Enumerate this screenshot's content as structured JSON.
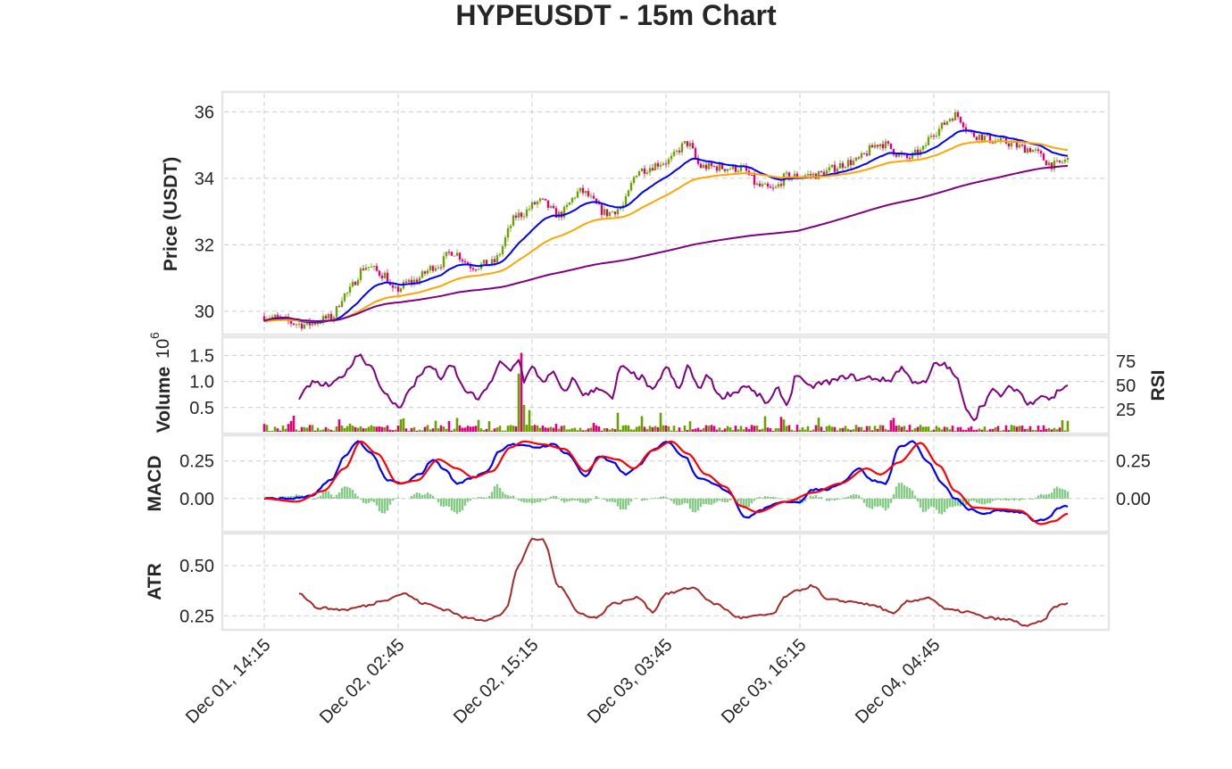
{
  "chart_data": {
    "type": "candlestick",
    "title": "HYPEUSDT - 15m Chart",
    "x_tick_labels": [
      "Dec 01, 14:15",
      "Dec 02, 02:45",
      "Dec 02, 15:15",
      "Dec 03, 03:45",
      "Dec 03, 16:15",
      "Dec 04, 04:45"
    ],
    "bars_between_ticks": 50,
    "bar_count": 301,
    "colors": {
      "up": "#6aa000",
      "down": "#e0007a",
      "ma_fast": "#0000ff",
      "ma_mid": "#ffa500",
      "ma_slow": "#800080",
      "rsi": "#800080",
      "macd": "#0000ff",
      "signal": "#ff0000",
      "hist": "#5cb85c",
      "atr": "#a52a2a"
    },
    "panels": {
      "price": {
        "ylabel": "Price (USDT)",
        "ylim": [
          29.3,
          36.6
        ],
        "y_ticks": [
          30,
          32,
          34,
          36
        ],
        "close_keypoints": [
          [
            0,
            29.85
          ],
          [
            15,
            29.6
          ],
          [
            25,
            29.8
          ],
          [
            30,
            30.5
          ],
          [
            38,
            31.35
          ],
          [
            45,
            31.1
          ],
          [
            48,
            30.6
          ],
          [
            55,
            30.9
          ],
          [
            65,
            31.4
          ],
          [
            70,
            31.8
          ],
          [
            78,
            31.35
          ],
          [
            85,
            31.45
          ],
          [
            95,
            32.9
          ],
          [
            103,
            33.3
          ],
          [
            110,
            32.9
          ],
          [
            118,
            33.6
          ],
          [
            128,
            32.95
          ],
          [
            133,
            33.1
          ],
          [
            140,
            34.25
          ],
          [
            150,
            34.5
          ],
          [
            158,
            35.05
          ],
          [
            163,
            34.35
          ],
          [
            178,
            34.3
          ],
          [
            185,
            33.75
          ],
          [
            190,
            33.65
          ],
          [
            195,
            34.05
          ],
          [
            205,
            34.1
          ],
          [
            220,
            34.5
          ],
          [
            230,
            35.05
          ],
          [
            240,
            34.6
          ],
          [
            245,
            34.8
          ],
          [
            250,
            35.4
          ],
          [
            258,
            35.9
          ],
          [
            265,
            35.3
          ],
          [
            275,
            35.1
          ],
          [
            285,
            34.9
          ],
          [
            295,
            34.4
          ],
          [
            300,
            34.55
          ]
        ],
        "ma_fast_label": "",
        "ma_mid_label": "",
        "ma_slow_label": ""
      },
      "volume": {
        "ylabel": "Volume",
        "exponent_label": "10",
        "exponent_power": "6",
        "ylim": [
          0,
          1.85
        ],
        "y_ticks": [
          "0.5",
          "1.0",
          "1.5"
        ],
        "spikes": [
          [
            95,
            1.15
          ],
          [
            96,
            1.55
          ],
          [
            97,
            0.55
          ],
          [
            99,
            0.45
          ],
          [
            132,
            0.4
          ],
          [
            148,
            0.4
          ],
          [
            193,
            0.32
          ],
          [
            235,
            0.3
          ]
        ]
      },
      "rsi": {
        "ylabel": "RSI",
        "ylim": [
          0,
          100
        ],
        "y_ticks": [
          "25",
          "50",
          "75"
        ],
        "keypoints": [
          [
            13,
            38
          ],
          [
            18,
            52
          ],
          [
            25,
            50
          ],
          [
            30,
            62
          ],
          [
            35,
            82
          ],
          [
            40,
            70
          ],
          [
            45,
            40
          ],
          [
            50,
            28
          ],
          [
            55,
            46
          ],
          [
            58,
            62
          ],
          [
            62,
            70
          ],
          [
            66,
            58
          ],
          [
            70,
            70
          ],
          [
            75,
            45
          ],
          [
            80,
            36
          ],
          [
            85,
            55
          ],
          [
            88,
            73
          ],
          [
            92,
            66
          ],
          [
            95,
            78
          ],
          [
            97,
            55
          ],
          [
            100,
            68
          ],
          [
            104,
            55
          ],
          [
            108,
            62
          ],
          [
            112,
            42
          ],
          [
            115,
            56
          ],
          [
            120,
            40
          ],
          [
            125,
            48
          ],
          [
            130,
            36
          ],
          [
            133,
            70
          ],
          [
            137,
            62
          ],
          [
            141,
            58
          ],
          [
            145,
            44
          ],
          [
            150,
            68
          ],
          [
            155,
            46
          ],
          [
            158,
            70
          ],
          [
            162,
            48
          ],
          [
            166,
            60
          ],
          [
            170,
            38
          ],
          [
            175,
            42
          ],
          [
            180,
            50
          ],
          [
            183,
            42
          ],
          [
            188,
            32
          ],
          [
            192,
            46
          ],
          [
            195,
            30
          ],
          [
            199,
            62
          ],
          [
            203,
            48
          ],
          [
            208,
            52
          ],
          [
            213,
            55
          ],
          [
            218,
            60
          ],
          [
            223,
            56
          ],
          [
            226,
            58
          ],
          [
            233,
            55
          ],
          [
            238,
            68
          ],
          [
            242,
            55
          ],
          [
            247,
            52
          ],
          [
            250,
            71
          ],
          [
            254,
            72
          ],
          [
            258,
            60
          ],
          [
            262,
            28
          ],
          [
            265,
            15
          ],
          [
            268,
            30
          ],
          [
            272,
            44
          ],
          [
            275,
            40
          ],
          [
            279,
            48
          ],
          [
            282,
            44
          ],
          [
            285,
            30
          ],
          [
            290,
            40
          ],
          [
            294,
            36
          ],
          [
            297,
            46
          ],
          [
            300,
            50
          ]
        ]
      },
      "macd": {
        "ylabel": "MACD",
        "ylim": [
          -0.22,
          0.42
        ],
        "y_ticks": [
          "0.00",
          "0.25"
        ],
        "right_ticks": [
          "0.00",
          "0.25"
        ],
        "macd_keypoints": [
          [
            0,
            0
          ],
          [
            10,
            0.0
          ],
          [
            17,
            0.015
          ],
          [
            25,
            0.12
          ],
          [
            30,
            0.28
          ],
          [
            35,
            0.38
          ],
          [
            40,
            0.3
          ],
          [
            46,
            0.12
          ],
          [
            52,
            0.1
          ],
          [
            58,
            0.16
          ],
          [
            63,
            0.26
          ],
          [
            67,
            0.2
          ],
          [
            72,
            0.1
          ],
          [
            78,
            0.14
          ],
          [
            83,
            0.18
          ],
          [
            88,
            0.32
          ],
          [
            92,
            0.36
          ],
          [
            97,
            0.35
          ],
          [
            102,
            0.34
          ],
          [
            108,
            0.36
          ],
          [
            113,
            0.3
          ],
          [
            120,
            0.15
          ],
          [
            125,
            0.28
          ],
          [
            130,
            0.24
          ],
          [
            135,
            0.16
          ],
          [
            140,
            0.22
          ],
          [
            145,
            0.32
          ],
          [
            150,
            0.38
          ],
          [
            157,
            0.28
          ],
          [
            162,
            0.14
          ],
          [
            168,
            0.1
          ],
          [
            173,
            0.05
          ],
          [
            180,
            -0.13
          ],
          [
            185,
            -0.08
          ],
          [
            190,
            -0.04
          ],
          [
            195,
            -0.02
          ],
          [
            200,
            -0.02
          ],
          [
            205,
            0.06
          ],
          [
            210,
            0.06
          ],
          [
            215,
            0.1
          ],
          [
            222,
            0.2
          ],
          [
            227,
            0.12
          ],
          [
            232,
            0.1
          ],
          [
            237,
            0.34
          ],
          [
            242,
            0.38
          ],
          [
            248,
            0.24
          ],
          [
            253,
            0.1
          ],
          [
            258,
            0.0
          ],
          [
            263,
            -0.07
          ],
          [
            268,
            -0.1
          ],
          [
            275,
            -0.08
          ],
          [
            283,
            -0.09
          ],
          [
            288,
            -0.15
          ],
          [
            292,
            -0.14
          ],
          [
            297,
            -0.06
          ],
          [
            300,
            -0.05
          ]
        ],
        "signal_keypoints": [
          [
            0,
            0
          ],
          [
            12,
            -0.02
          ],
          [
            22,
            0.05
          ],
          [
            30,
            0.2
          ],
          [
            36,
            0.38
          ],
          [
            42,
            0.3
          ],
          [
            50,
            0.1
          ],
          [
            57,
            0.12
          ],
          [
            65,
            0.26
          ],
          [
            72,
            0.2
          ],
          [
            78,
            0.14
          ],
          [
            85,
            0.18
          ],
          [
            92,
            0.34
          ],
          [
            97,
            0.38
          ],
          [
            104,
            0.36
          ],
          [
            112,
            0.33
          ],
          [
            120,
            0.18
          ],
          [
            126,
            0.28
          ],
          [
            132,
            0.26
          ],
          [
            138,
            0.2
          ],
          [
            145,
            0.32
          ],
          [
            152,
            0.38
          ],
          [
            158,
            0.3
          ],
          [
            165,
            0.16
          ],
          [
            172,
            0.08
          ],
          [
            178,
            -0.05
          ],
          [
            184,
            -0.09
          ],
          [
            195,
            -0.02
          ],
          [
            205,
            0.04
          ],
          [
            215,
            0.1
          ],
          [
            225,
            0.2
          ],
          [
            230,
            0.16
          ],
          [
            237,
            0.24
          ],
          [
            245,
            0.37
          ],
          [
            252,
            0.22
          ],
          [
            258,
            0.05
          ],
          [
            265,
            -0.06
          ],
          [
            275,
            -0.07
          ],
          [
            282,
            -0.08
          ],
          [
            290,
            -0.17
          ],
          [
            295,
            -0.15
          ],
          [
            300,
            -0.1
          ]
        ]
      },
      "atr": {
        "ylabel": "ATR",
        "ylim": [
          0.18,
          0.66
        ],
        "y_ticks": [
          "0.25",
          "0.50"
        ],
        "keypoints": [
          [
            13,
            0.36
          ],
          [
            20,
            0.29
          ],
          [
            30,
            0.28
          ],
          [
            38,
            0.3
          ],
          [
            45,
            0.33
          ],
          [
            52,
            0.36
          ],
          [
            60,
            0.31
          ],
          [
            68,
            0.28
          ],
          [
            75,
            0.24
          ],
          [
            82,
            0.23
          ],
          [
            88,
            0.25
          ],
          [
            90,
            0.28
          ],
          [
            95,
            0.5
          ],
          [
            100,
            0.63
          ],
          [
            104,
            0.63
          ],
          [
            110,
            0.4
          ],
          [
            118,
            0.26
          ],
          [
            124,
            0.24
          ],
          [
            130,
            0.31
          ],
          [
            140,
            0.34
          ],
          [
            145,
            0.27
          ],
          [
            150,
            0.36
          ],
          [
            160,
            0.39
          ],
          [
            168,
            0.31
          ],
          [
            178,
            0.24
          ],
          [
            185,
            0.25
          ],
          [
            190,
            0.26
          ],
          [
            195,
            0.35
          ],
          [
            200,
            0.38
          ],
          [
            205,
            0.4
          ],
          [
            210,
            0.33
          ],
          [
            220,
            0.32
          ],
          [
            228,
            0.3
          ],
          [
            235,
            0.26
          ],
          [
            240,
            0.32
          ],
          [
            248,
            0.34
          ],
          [
            255,
            0.28
          ],
          [
            262,
            0.27
          ],
          [
            270,
            0.24
          ],
          [
            278,
            0.23
          ],
          [
            285,
            0.2
          ],
          [
            290,
            0.22
          ],
          [
            296,
            0.3
          ],
          [
            300,
            0.31
          ]
        ]
      }
    }
  }
}
